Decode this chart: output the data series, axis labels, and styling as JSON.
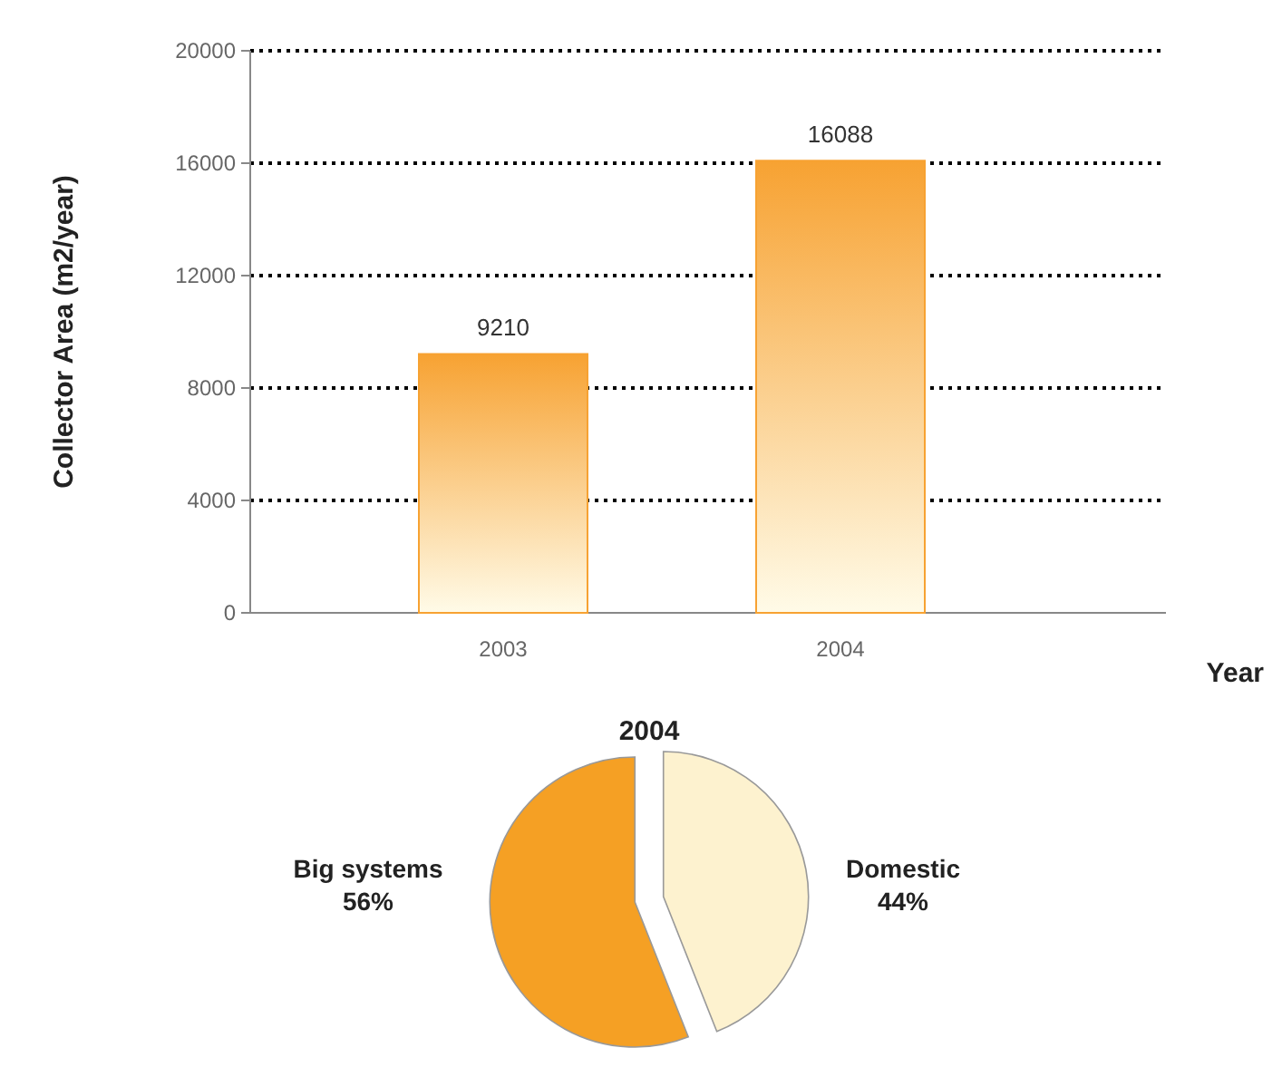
{
  "chart_data": [
    {
      "type": "bar",
      "xlabel": "Year",
      "ylabel": "Collector Area  (m2/year)",
      "categories": [
        "2003",
        "2004"
      ],
      "values": [
        9210,
        16088
      ],
      "color": "#f7a232",
      "ylim": [
        0,
        20000
      ],
      "yticks": [
        0,
        4000,
        8000,
        12000,
        16000,
        20000
      ],
      "grid": "y",
      "data_labels": true
    },
    {
      "type": "pie",
      "title": "2004",
      "categories": [
        "Big systems",
        "Domestic"
      ],
      "values": [
        56,
        44
      ],
      "colors": [
        "#f5a024",
        "#fdf2cf"
      ],
      "value_labels": [
        "56%",
        "44%"
      ]
    }
  ]
}
